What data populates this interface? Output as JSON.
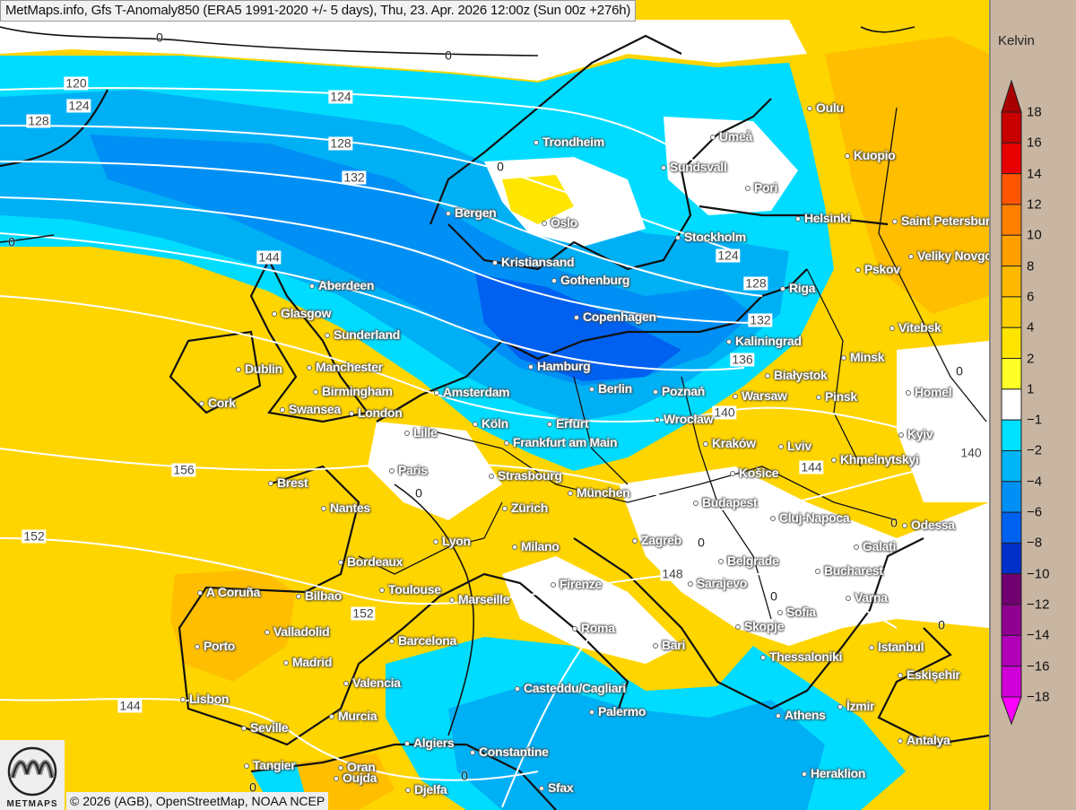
{
  "title": "MetMaps.info, Gfs T-Anomaly850 (ERA5 1991-2020 +/- 5 days), Thu, 23. Apr. 2026 12:00z (Sun 00z +276h)",
  "copyright": "© 2026 (AGB), OpenStreetMap, NOAA NCEP",
  "logo_text": "METMAPS",
  "legend": {
    "unit": "Kelvin",
    "labels": [
      "18",
      "16",
      "14",
      "12",
      "10",
      "8",
      "6",
      "4",
      "2",
      "1",
      "−1",
      "−2",
      "−4",
      "−6",
      "−8",
      "−10",
      "−12",
      "−14",
      "−16",
      "−18"
    ],
    "colors": [
      "#a80000",
      "#c80000",
      "#e80000",
      "#ff5500",
      "#ff8000",
      "#ffa000",
      "#ffb900",
      "#ffd000",
      "#ffe400",
      "#ffff28",
      "#ffffff",
      "#00e0ff",
      "#00b4f5",
      "#0090f5",
      "#0060f0",
      "#0030c8",
      "#700070",
      "#900090",
      "#b000b8",
      "#d000d8",
      "#ff00ff"
    ]
  },
  "cities": [
    "Oulu",
    "Umeå",
    "Trondheim",
    "Kuopio",
    "Sundsvall",
    "Pori",
    "Bergen",
    "Oslo",
    "Helsinki",
    "Saint Petersburg",
    "Stockholm",
    "Veliky Novgorod",
    "Kristiansand",
    "Gothenburg",
    "Pskov",
    "Aberdeen",
    "Riga",
    "Glasgow",
    "Copenhagen",
    "Vitebsk",
    "Sunderland",
    "Kaliningrad",
    "Minsk",
    "Białystok",
    "Dublin",
    "Manchester",
    "Hamburg",
    "Birmingham",
    "Amsterdam",
    "Berlin",
    "Poznań",
    "Warsaw",
    "Pinsk",
    "Homel",
    "Cork",
    "Swansea",
    "London",
    "Köln",
    "Erfurt",
    "Wrocław",
    "Lille",
    "Frankfurt am Main",
    "Kraków",
    "Lviv",
    "Kyiv",
    "Khmelnytskyi",
    "Paris",
    "Strasbourg",
    "Košice",
    "Brest",
    "München",
    "Nantes",
    "Zürich",
    "Budapest",
    "Cluj-Napoca",
    "Odessa",
    "Lyon",
    "Milano",
    "Zagreb",
    "Galați",
    "Bordeaux",
    "Belgrade",
    "Bucharest",
    "A Coruña",
    "Bilbao",
    "Toulouse",
    "Marseille",
    "Firenze",
    "Sarajevo",
    "Varna",
    "Sofia",
    "Skopje",
    "Roma",
    "Valladolid",
    "Porto",
    "Barcelona",
    "Bari",
    "Istanbul",
    "Madrid",
    "Thessaloniki",
    "Eskişehir",
    "Valencia",
    "Casteddu/Cagliari",
    "Lisbon",
    "İzmir",
    "Murcia",
    "Palermo",
    "Athens",
    "Seville",
    "Algiers",
    "Antalya",
    "Constantine",
    "Tangier",
    "Oran",
    "Oujda",
    "Heraklion",
    "Djelfa",
    "Sfax"
  ],
  "contour_labels": [
    "0",
    "0",
    "120",
    "124",
    "128",
    "124",
    "128",
    "132",
    "0",
    "144",
    "0",
    "124",
    "128",
    "132",
    "136",
    "140",
    "144",
    "140",
    "156",
    "152",
    "148",
    "152",
    "144",
    "0",
    "0",
    "0",
    "0",
    "0",
    "0",
    "0",
    "0"
  ]
}
